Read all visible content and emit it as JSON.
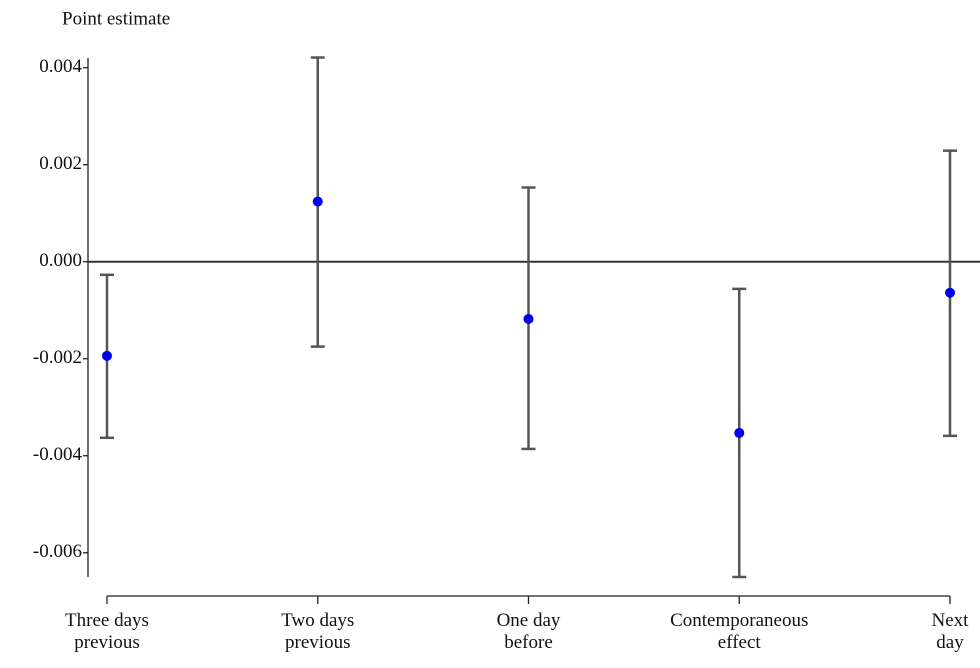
{
  "chart_data": {
    "type": "errorbar",
    "y_label": "Point estimate",
    "categories": [
      "Three days\nprevious",
      "Two days\nprevious",
      "One day\nbefore",
      "Contemporaneous\neffect",
      "Next\nday"
    ],
    "series": [
      {
        "color": "#0000ee",
        "bar_color": "#555555",
        "values": [
          -0.00194,
          0.00124,
          -0.00118,
          -0.00353,
          -0.00064
        ],
        "lower": [
          -0.00363,
          -0.00175,
          -0.00386,
          -0.0065,
          -0.00359
        ],
        "upper": [
          -0.00027,
          0.00421,
          0.00153,
          -0.00056,
          0.00229
        ]
      }
    ],
    "ylim": [
      -0.0065,
      0.0042
    ],
    "yticks": [
      -0.006,
      -0.004,
      -0.002,
      {
        "value": 0,
        "label": "0.000"
      },
      0.002,
      0.004
    ],
    "reference_line": 0
  }
}
